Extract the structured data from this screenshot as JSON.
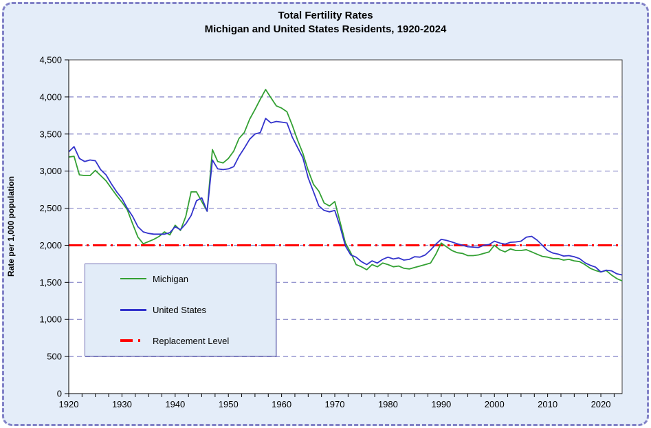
{
  "title": {
    "line1": "Total Fertility Rates",
    "line2": "Michigan and United States Residents, 1920-2024"
  },
  "colors": {
    "page_background": "#e4edf9",
    "frame_border": "#8181c7",
    "plot_background": "#ffffff",
    "plot_border": "#3f3f3f",
    "gridline": "#8686c8",
    "michigan": "#33a033",
    "united_states": "#3333cc",
    "replacement": "#ff0000",
    "text": "#000000"
  },
  "legend": {
    "items": [
      {
        "label": "Michigan",
        "swatch": "green-line"
      },
      {
        "label": "United States",
        "swatch": "blue-line"
      },
      {
        "label": "Replacement Level",
        "swatch": "red-dash-dot-line"
      }
    ]
  },
  "chart_data": {
    "type": "line",
    "title": "Total Fertility Rates",
    "subtitle": "Michigan and United States Residents, 1920-2024",
    "xlabel": "",
    "ylabel": "Rate per 1,000 population",
    "ylim": [
      0,
      4500
    ],
    "y_tick_step": 500,
    "y_tick_labels": [
      "0",
      "500",
      "1,000",
      "1,500",
      "2,000",
      "2,500",
      "3,000",
      "3,500",
      "4,000",
      "4,500"
    ],
    "x_range": [
      1920,
      2024
    ],
    "x_tick_labels": [
      "1920",
      "1930",
      "1940",
      "1950",
      "1960",
      "1970",
      "1980",
      "1990",
      "2000",
      "2010",
      "2020"
    ],
    "x_minor_tick_interval_years": 2.5,
    "grid": "horizontal dashed gridlines every 500",
    "legend_position": "inside lower-left",
    "reference_line": {
      "name": "Replacement Level",
      "value": 2000,
      "style": "dash-dot",
      "color": "#ff0000"
    },
    "years": [
      1920,
      1921,
      1922,
      1923,
      1924,
      1925,
      1926,
      1927,
      1928,
      1929,
      1930,
      1931,
      1932,
      1933,
      1934,
      1935,
      1936,
      1937,
      1938,
      1939,
      1940,
      1941,
      1942,
      1943,
      1944,
      1945,
      1946,
      1947,
      1948,
      1949,
      1950,
      1951,
      1952,
      1953,
      1954,
      1955,
      1956,
      1957,
      1958,
      1959,
      1960,
      1961,
      1962,
      1963,
      1964,
      1965,
      1966,
      1967,
      1968,
      1969,
      1970,
      1971,
      1972,
      1973,
      1974,
      1975,
      1976,
      1977,
      1978,
      1979,
      1980,
      1981,
      1982,
      1983,
      1984,
      1985,
      1986,
      1987,
      1988,
      1989,
      1990,
      1991,
      1992,
      1993,
      1994,
      1995,
      1996,
      1997,
      1998,
      1999,
      2000,
      2001,
      2002,
      2003,
      2004,
      2005,
      2006,
      2007,
      2008,
      2009,
      2010,
      2011,
      2012,
      2013,
      2014,
      2015,
      2016,
      2017,
      2018,
      2019,
      2020,
      2021,
      2022,
      2023,
      2024
    ],
    "series": [
      {
        "name": "Michigan",
        "color": "#33a033",
        "values": [
          3190,
          3200,
          2950,
          2940,
          2940,
          3010,
          2940,
          2870,
          2770,
          2670,
          2580,
          2480,
          2290,
          2110,
          2020,
          2050,
          2080,
          2120,
          2180,
          2140,
          2270,
          2200,
          2390,
          2720,
          2720,
          2590,
          2460,
          3290,
          3130,
          3110,
          3170,
          3270,
          3440,
          3520,
          3700,
          3830,
          3970,
          4100,
          3990,
          3880,
          3850,
          3800,
          3620,
          3420,
          3240,
          3010,
          2820,
          2730,
          2570,
          2530,
          2590,
          2310,
          2030,
          1900,
          1740,
          1710,
          1670,
          1740,
          1710,
          1760,
          1740,
          1710,
          1720,
          1690,
          1680,
          1700,
          1720,
          1740,
          1760,
          1880,
          2030,
          1980,
          1930,
          1900,
          1890,
          1860,
          1860,
          1870,
          1890,
          1910,
          2000,
          1940,
          1910,
          1950,
          1930,
          1930,
          1940,
          1910,
          1880,
          1850,
          1840,
          1820,
          1820,
          1800,
          1810,
          1790,
          1780,
          1740,
          1690,
          1660,
          1640,
          1660,
          1600,
          1550,
          1520
        ]
      },
      {
        "name": "United States",
        "color": "#3333cc",
        "values": [
          3260,
          3330,
          3170,
          3130,
          3150,
          3140,
          3020,
          2950,
          2830,
          2720,
          2630,
          2500,
          2390,
          2250,
          2180,
          2160,
          2150,
          2150,
          2150,
          2170,
          2250,
          2210,
          2290,
          2400,
          2600,
          2640,
          2460,
          3150,
          3030,
          3020,
          3030,
          3060,
          3200,
          3310,
          3430,
          3500,
          3520,
          3710,
          3650,
          3670,
          3660,
          3650,
          3460,
          3320,
          3180,
          2910,
          2720,
          2530,
          2470,
          2450,
          2470,
          2250,
          1990,
          1870,
          1840,
          1780,
          1740,
          1790,
          1760,
          1810,
          1840,
          1815,
          1830,
          1800,
          1810,
          1845,
          1840,
          1870,
          1935,
          2015,
          2080,
          2065,
          2045,
          2020,
          2000,
          1980,
          1975,
          1970,
          2000,
          2010,
          2055,
          2030,
          2015,
          2040,
          2045,
          2055,
          2110,
          2120,
          2070,
          2000,
          1930,
          1895,
          1880,
          1855,
          1860,
          1845,
          1820,
          1765,
          1730,
          1705,
          1640,
          1665,
          1655,
          1615,
          1600
        ]
      }
    ]
  }
}
